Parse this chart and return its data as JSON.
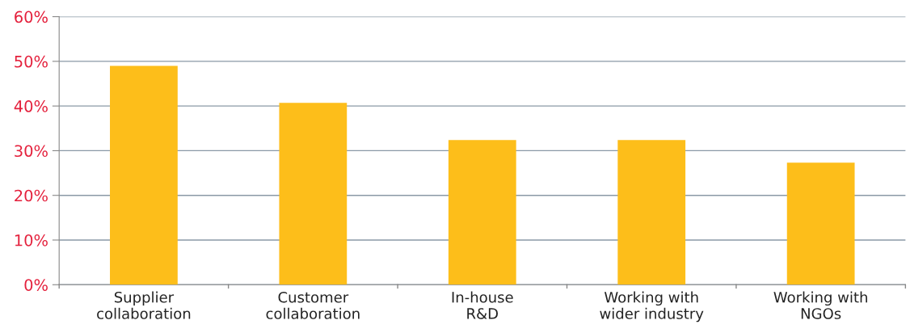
{
  "chart_data": {
    "type": "bar",
    "categories": [
      "Supplier\ncollaboration",
      "Customer\ncollaboration",
      "In-house\nR&D",
      "Working with\nwider industry",
      "Working with\nNGOs"
    ],
    "values": [
      49.0,
      40.7,
      32.4,
      32.4,
      27.3
    ],
    "color": "#fdbe1a",
    "ylim": [
      0,
      60
    ],
    "yticks": [
      {
        "value": 0,
        "label": "0%"
      },
      {
        "value": 10,
        "label": "10%"
      },
      {
        "value": 20,
        "label": "20%"
      },
      {
        "value": 30,
        "label": "30%"
      },
      {
        "value": 40,
        "label": "40%"
      },
      {
        "value": 50,
        "label": "50%"
      },
      {
        "value": 60,
        "label": "60%"
      }
    ],
    "grid": "y"
  }
}
